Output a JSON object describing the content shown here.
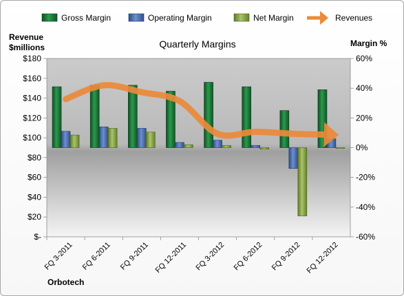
{
  "chart_data": {
    "type": "bar",
    "title": "Quarterly Margins",
    "company": "Orbotech",
    "y_left_label_line1": "Revenue",
    "y_left_label_line2": "$millions",
    "y_right_label": "Margin %",
    "categories": [
      "FQ 3-2011",
      "FQ 6-2011",
      "FQ 9-2011",
      "FQ 12-2011",
      "FQ 3-2012",
      "FQ 6-2012",
      "FQ 9-2012",
      "FQ 12-2012"
    ],
    "y_left_ticks": [
      "$180",
      "$160",
      "$140",
      "$120",
      "$100",
      "$80",
      "$60",
      "$40",
      "$20",
      "$-"
    ],
    "y_right_ticks": [
      "60%",
      "40%",
      "20%",
      "0%",
      "-20%",
      "-40%",
      "-60%"
    ],
    "y_left_range": [
      0,
      180
    ],
    "y_right_range": [
      -60,
      60
    ],
    "legend_position": "top",
    "series": [
      {
        "name": "Gross Margin",
        "axis": "right",
        "type": "bar",
        "color": "#1e7a3c",
        "values": [
          41,
          42,
          42,
          38,
          44,
          41,
          25,
          39
        ]
      },
      {
        "name": "Operating Margin",
        "axis": "right",
        "type": "bar",
        "color": "#4a6fb0",
        "values": [
          11,
          14,
          13,
          3.5,
          5,
          1.5,
          -14,
          6
        ]
      },
      {
        "name": "Net Margin",
        "axis": "right",
        "type": "bar",
        "color": "#8ba84a",
        "values": [
          8.5,
          13,
          10.5,
          2,
          1.5,
          -1,
          -46,
          -0.5
        ]
      },
      {
        "name": "Revenues",
        "axis": "left",
        "type": "line",
        "color": "#e8883a",
        "values": [
          139,
          153,
          146,
          137,
          104,
          106,
          104,
          103
        ]
      }
    ]
  }
}
